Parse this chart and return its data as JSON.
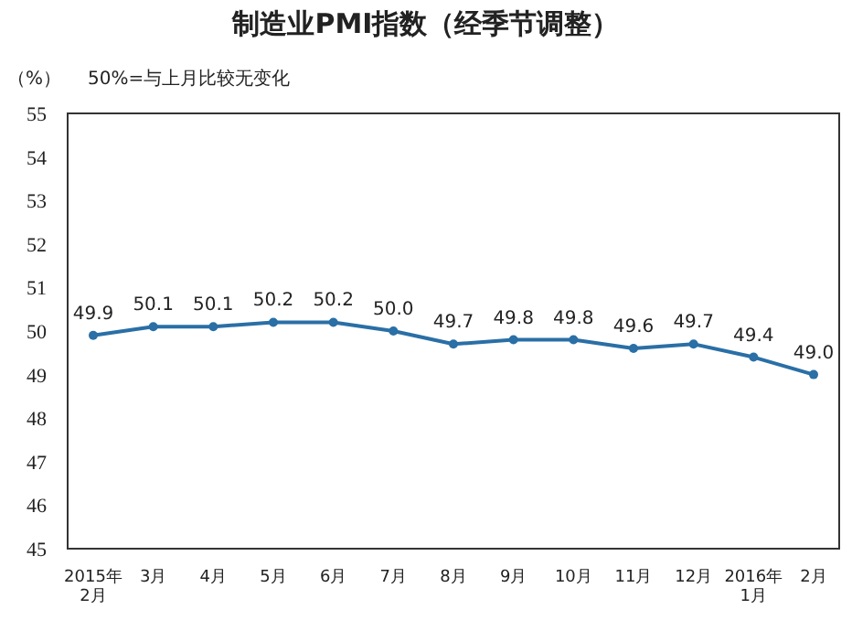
{
  "chart_data": {
    "type": "line",
    "title": "制造业PMI指数（经季节调整）",
    "ylabel": "（%）",
    "annotations": [
      "50%=与上月比较无变化"
    ],
    "categories": [
      "2015年\n2月",
      "3月",
      "4月",
      "5月",
      "6月",
      "7月",
      "8月",
      "9月",
      "10月",
      "11月",
      "12月",
      "2016年\n1月",
      "2月"
    ],
    "series": [
      {
        "color": "#2a6fa6",
        "values": [
          49.9,
          50.1,
          50.1,
          50.2,
          50.2,
          50.0,
          49.7,
          49.8,
          49.8,
          49.6,
          49.7,
          49.4,
          49.0
        ],
        "value_labels": [
          "49.9",
          "50.1",
          "50.1",
          "50.2",
          "50.2",
          "50.0",
          "49.7",
          "49.8",
          "49.8",
          "49.6",
          "49.7",
          "49.4",
          "49.0"
        ]
      }
    ],
    "ylim": [
      45,
      55
    ],
    "yticks": [
      45,
      46,
      47,
      48,
      49,
      50,
      51,
      52,
      53,
      54,
      55
    ],
    "marker": "circle",
    "line_style": "solid"
  }
}
